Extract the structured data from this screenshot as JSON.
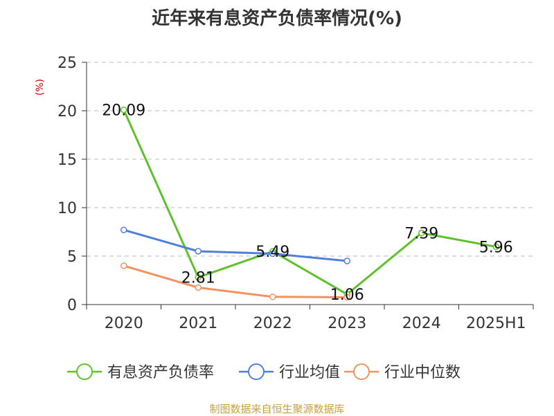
{
  "chart_data": {
    "type": "line",
    "title": "近年来有息资产负债率情况(%)",
    "ylabel": "(%)",
    "categories": [
      "2020",
      "2021",
      "2022",
      "2023",
      "2024",
      "2025H1"
    ],
    "ylim": [
      0,
      25
    ],
    "yticks": [
      0,
      5,
      10,
      15,
      20,
      25
    ],
    "grid": true,
    "legend_position": "bottom",
    "series": [
      {
        "name": "有息资产负债率",
        "color": "#5dc229",
        "values": [
          20.09,
          2.81,
          5.49,
          1.06,
          7.39,
          5.96
        ],
        "labels": [
          "20.09",
          "2.81",
          "5.49",
          "1.06",
          "7.39",
          "5.96"
        ]
      },
      {
        "name": "行业均值",
        "color": "#4f7fdb",
        "values": [
          7.7,
          5.5,
          5.25,
          4.5,
          null,
          null
        ]
      },
      {
        "name": "行业中位数",
        "color": "#f39160",
        "values": [
          4.0,
          1.75,
          0.8,
          0.75,
          null,
          null
        ]
      }
    ]
  },
  "source": "制图数据来自恒生聚源数据库"
}
